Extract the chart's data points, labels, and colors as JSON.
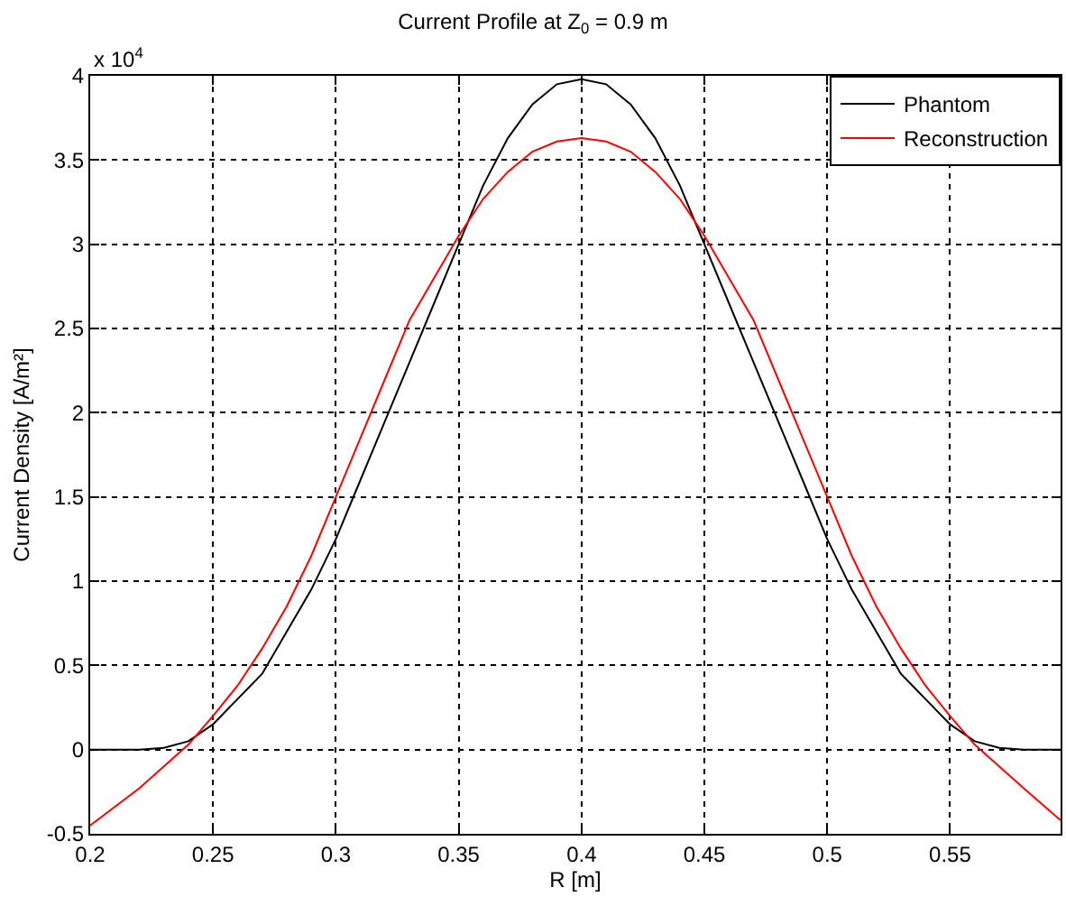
{
  "chart_data": {
    "type": "line",
    "title": "Current Profile at Z$_{0}$ = 0.9 m",
    "xlabel": "R [m]",
    "ylabel": "Current Density [A/m²]",
    "annotations": [
      "x 10$^{4}$"
    ],
    "x": [
      0.2,
      0.22,
      0.23,
      0.24,
      0.25,
      0.26,
      0.27,
      0.28,
      0.29,
      0.3,
      0.31,
      0.32,
      0.33,
      0.34,
      0.35,
      0.36,
      0.37,
      0.38,
      0.39,
      0.4,
      0.41,
      0.42,
      0.43,
      0.44,
      0.45,
      0.46,
      0.47,
      0.48,
      0.49,
      0.5,
      0.51,
      0.52,
      0.53,
      0.54,
      0.55,
      0.56,
      0.57,
      0.58,
      0.595
    ],
    "series": [
      {
        "name": "Phantom",
        "color": "#000000",
        "values": [
          0,
          0,
          0.01,
          0.05,
          0.15,
          0.3,
          0.45,
          0.7,
          0.95,
          1.25,
          1.6,
          1.95,
          2.3,
          2.65,
          3.0,
          3.35,
          3.63,
          3.83,
          3.95,
          3.98,
          3.95,
          3.83,
          3.63,
          3.35,
          3.0,
          2.65,
          2.3,
          1.95,
          1.6,
          1.25,
          0.95,
          0.7,
          0.45,
          0.3,
          0.15,
          0.05,
          0.01,
          0,
          0
        ]
      },
      {
        "name": "Reconstruction",
        "color": "#ff0000",
        "values": [
          -0.45,
          -0.23,
          -0.1,
          0.03,
          0.2,
          0.38,
          0.6,
          0.85,
          1.15,
          1.5,
          1.85,
          2.2,
          2.55,
          2.8,
          3.05,
          3.27,
          3.43,
          3.55,
          3.61,
          3.63,
          3.61,
          3.55,
          3.43,
          3.27,
          3.05,
          2.8,
          2.55,
          2.2,
          1.85,
          1.5,
          1.15,
          0.85,
          0.6,
          0.38,
          0.2,
          0.03,
          -0.1,
          -0.23,
          -0.42
        ]
      }
    ],
    "xlim": [
      0.2,
      0.595
    ],
    "xticks": [
      0.2,
      0.25,
      0.3,
      0.35,
      0.4,
      0.45,
      0.5,
      0.55
    ],
    "ylim": [
      -0.5,
      4
    ],
    "yticks": [
      -0.5,
      0,
      0.5,
      1,
      1.5,
      2,
      2.5,
      3,
      3.5,
      4
    ],
    "grid": true,
    "legend": "top right",
    "line_style": "solid",
    "marker": "none"
  }
}
